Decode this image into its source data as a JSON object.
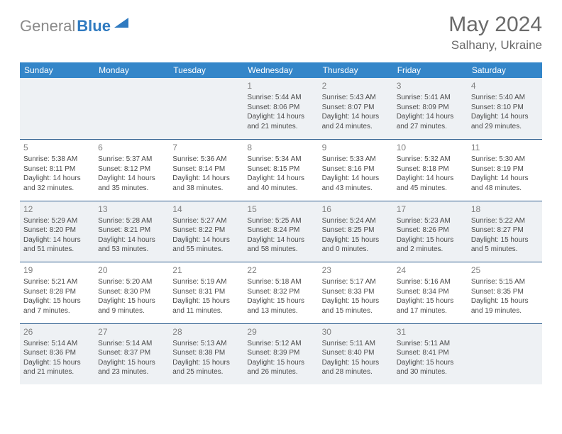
{
  "logo": {
    "gray": "General",
    "blue": "Blue"
  },
  "title": "May 2024",
  "location": "Salhany, Ukraine",
  "weekday_header_bg": "#3486c9",
  "weekday_header_color": "#ffffff",
  "shaded_bg": "#eef1f4",
  "separator_color": "#2f5f8f",
  "text_color": "#4a4a4a",
  "daynum_color": "#808080",
  "weekdays": [
    "Sunday",
    "Monday",
    "Tuesday",
    "Wednesday",
    "Thursday",
    "Friday",
    "Saturday"
  ],
  "weeks": [
    [
      null,
      null,
      null,
      {
        "n": "1",
        "rise": "5:44 AM",
        "set": "8:06 PM",
        "dl": "14 hours and 21 minutes."
      },
      {
        "n": "2",
        "rise": "5:43 AM",
        "set": "8:07 PM",
        "dl": "14 hours and 24 minutes."
      },
      {
        "n": "3",
        "rise": "5:41 AM",
        "set": "8:09 PM",
        "dl": "14 hours and 27 minutes."
      },
      {
        "n": "4",
        "rise": "5:40 AM",
        "set": "8:10 PM",
        "dl": "14 hours and 29 minutes."
      }
    ],
    [
      {
        "n": "5",
        "rise": "5:38 AM",
        "set": "8:11 PM",
        "dl": "14 hours and 32 minutes."
      },
      {
        "n": "6",
        "rise": "5:37 AM",
        "set": "8:12 PM",
        "dl": "14 hours and 35 minutes."
      },
      {
        "n": "7",
        "rise": "5:36 AM",
        "set": "8:14 PM",
        "dl": "14 hours and 38 minutes."
      },
      {
        "n": "8",
        "rise": "5:34 AM",
        "set": "8:15 PM",
        "dl": "14 hours and 40 minutes."
      },
      {
        "n": "9",
        "rise": "5:33 AM",
        "set": "8:16 PM",
        "dl": "14 hours and 43 minutes."
      },
      {
        "n": "10",
        "rise": "5:32 AM",
        "set": "8:18 PM",
        "dl": "14 hours and 45 minutes."
      },
      {
        "n": "11",
        "rise": "5:30 AM",
        "set": "8:19 PM",
        "dl": "14 hours and 48 minutes."
      }
    ],
    [
      {
        "n": "12",
        "rise": "5:29 AM",
        "set": "8:20 PM",
        "dl": "14 hours and 51 minutes."
      },
      {
        "n": "13",
        "rise": "5:28 AM",
        "set": "8:21 PM",
        "dl": "14 hours and 53 minutes."
      },
      {
        "n": "14",
        "rise": "5:27 AM",
        "set": "8:22 PM",
        "dl": "14 hours and 55 minutes."
      },
      {
        "n": "15",
        "rise": "5:25 AM",
        "set": "8:24 PM",
        "dl": "14 hours and 58 minutes."
      },
      {
        "n": "16",
        "rise": "5:24 AM",
        "set": "8:25 PM",
        "dl": "15 hours and 0 minutes."
      },
      {
        "n": "17",
        "rise": "5:23 AM",
        "set": "8:26 PM",
        "dl": "15 hours and 2 minutes."
      },
      {
        "n": "18",
        "rise": "5:22 AM",
        "set": "8:27 PM",
        "dl": "15 hours and 5 minutes."
      }
    ],
    [
      {
        "n": "19",
        "rise": "5:21 AM",
        "set": "8:28 PM",
        "dl": "15 hours and 7 minutes."
      },
      {
        "n": "20",
        "rise": "5:20 AM",
        "set": "8:30 PM",
        "dl": "15 hours and 9 minutes."
      },
      {
        "n": "21",
        "rise": "5:19 AM",
        "set": "8:31 PM",
        "dl": "15 hours and 11 minutes."
      },
      {
        "n": "22",
        "rise": "5:18 AM",
        "set": "8:32 PM",
        "dl": "15 hours and 13 minutes."
      },
      {
        "n": "23",
        "rise": "5:17 AM",
        "set": "8:33 PM",
        "dl": "15 hours and 15 minutes."
      },
      {
        "n": "24",
        "rise": "5:16 AM",
        "set": "8:34 PM",
        "dl": "15 hours and 17 minutes."
      },
      {
        "n": "25",
        "rise": "5:15 AM",
        "set": "8:35 PM",
        "dl": "15 hours and 19 minutes."
      }
    ],
    [
      {
        "n": "26",
        "rise": "5:14 AM",
        "set": "8:36 PM",
        "dl": "15 hours and 21 minutes."
      },
      {
        "n": "27",
        "rise": "5:14 AM",
        "set": "8:37 PM",
        "dl": "15 hours and 23 minutes."
      },
      {
        "n": "28",
        "rise": "5:13 AM",
        "set": "8:38 PM",
        "dl": "15 hours and 25 minutes."
      },
      {
        "n": "29",
        "rise": "5:12 AM",
        "set": "8:39 PM",
        "dl": "15 hours and 26 minutes."
      },
      {
        "n": "30",
        "rise": "5:11 AM",
        "set": "8:40 PM",
        "dl": "15 hours and 28 minutes."
      },
      {
        "n": "31",
        "rise": "5:11 AM",
        "set": "8:41 PM",
        "dl": "15 hours and 30 minutes."
      },
      null
    ]
  ],
  "labels": {
    "sunrise": "Sunrise:",
    "sunset": "Sunset:",
    "daylight": "Daylight:"
  }
}
